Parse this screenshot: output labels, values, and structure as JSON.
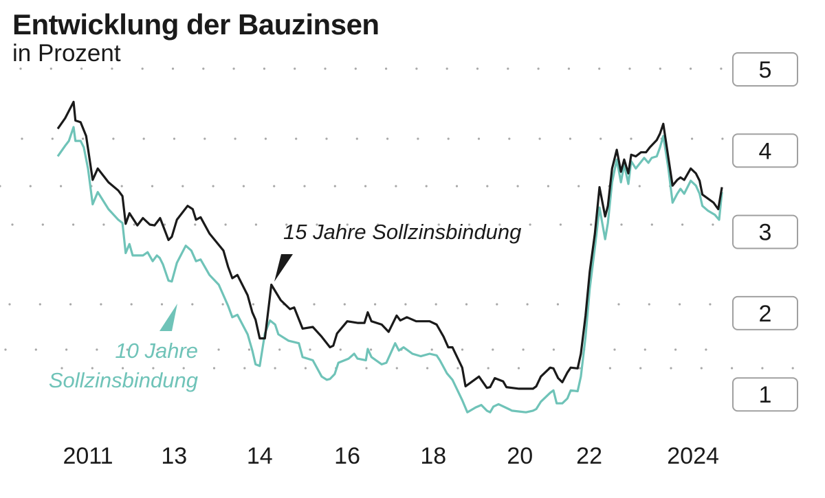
{
  "chart_data": {
    "type": "line",
    "title": "Entwicklung der Bauzinsen",
    "subtitle": "in Prozent",
    "xlabel": "",
    "ylabel": "",
    "ylim": [
      0.7,
      5
    ],
    "xlim": [
      2010.3,
      2024.7
    ],
    "grid": "dotted",
    "y_ticks": [
      5,
      4,
      3,
      2,
      1
    ],
    "x_ticks": [
      {
        "value": 2011.0,
        "label": "2011"
      },
      {
        "value": 2012.85,
        "label": "13"
      },
      {
        "value": 2014.69,
        "label": "14"
      },
      {
        "value": 2016.57,
        "label": "16"
      },
      {
        "value": 2018.42,
        "label": "18"
      },
      {
        "value": 2020.28,
        "label": "20"
      },
      {
        "value": 2021.77,
        "label": "22"
      },
      {
        "value": 2024.0,
        "label": "2024"
      }
    ],
    "series": [
      {
        "name": "15 Jahre Sollzinsbindung",
        "color": "#1a1a1a",
        "points": [
          [
            2010.35,
            4.27
          ],
          [
            2010.51,
            4.4
          ],
          [
            2010.69,
            4.6
          ],
          [
            2010.73,
            4.37
          ],
          [
            2010.84,
            4.35
          ],
          [
            2010.96,
            4.18
          ],
          [
            2011.1,
            3.64
          ],
          [
            2011.21,
            3.78
          ],
          [
            2011.44,
            3.61
          ],
          [
            2011.65,
            3.51
          ],
          [
            2011.74,
            3.44
          ],
          [
            2011.81,
            3.1
          ],
          [
            2011.89,
            3.23
          ],
          [
            2012.06,
            3.08
          ],
          [
            2012.18,
            3.17
          ],
          [
            2012.33,
            3.09
          ],
          [
            2012.43,
            3.08
          ],
          [
            2012.55,
            3.17
          ],
          [
            2012.73,
            2.9
          ],
          [
            2012.8,
            2.94
          ],
          [
            2012.91,
            3.15
          ],
          [
            2013.14,
            3.32
          ],
          [
            2013.25,
            3.28
          ],
          [
            2013.32,
            3.15
          ],
          [
            2013.42,
            3.18
          ],
          [
            2013.61,
            2.98
          ],
          [
            2013.81,
            2.84
          ],
          [
            2013.91,
            2.77
          ],
          [
            2014.01,
            2.57
          ],
          [
            2014.1,
            2.43
          ],
          [
            2014.21,
            2.47
          ],
          [
            2014.43,
            2.22
          ],
          [
            2014.53,
            2.01
          ],
          [
            2014.6,
            1.92
          ],
          [
            2014.69,
            1.69
          ],
          [
            2014.8,
            1.69
          ],
          [
            2014.94,
            2.35
          ],
          [
            2015.14,
            2.16
          ],
          [
            2015.34,
            2.05
          ],
          [
            2015.43,
            2.07
          ],
          [
            2015.61,
            1.81
          ],
          [
            2015.83,
            1.83
          ],
          [
            2016.02,
            1.71
          ],
          [
            2016.2,
            1.58
          ],
          [
            2016.27,
            1.6
          ],
          [
            2016.35,
            1.75
          ],
          [
            2016.57,
            1.9
          ],
          [
            2016.79,
            1.88
          ],
          [
            2016.94,
            1.88
          ],
          [
            2017.01,
            2.01
          ],
          [
            2017.09,
            1.9
          ],
          [
            2017.31,
            1.86
          ],
          [
            2017.46,
            1.77
          ],
          [
            2017.63,
            1.97
          ],
          [
            2017.71,
            1.91
          ],
          [
            2017.85,
            1.95
          ],
          [
            2018.05,
            1.9
          ],
          [
            2018.34,
            1.9
          ],
          [
            2018.49,
            1.86
          ],
          [
            2018.64,
            1.71
          ],
          [
            2018.74,
            1.58
          ],
          [
            2018.83,
            1.58
          ],
          [
            2018.93,
            1.46
          ],
          [
            2019.04,
            1.33
          ],
          [
            2019.11,
            1.1
          ],
          [
            2019.33,
            1.19
          ],
          [
            2019.4,
            1.22
          ],
          [
            2019.57,
            1.08
          ],
          [
            2019.64,
            1.09
          ],
          [
            2019.74,
            1.2
          ],
          [
            2019.92,
            1.16
          ],
          [
            2019.99,
            1.09
          ],
          [
            2020.26,
            1.07
          ],
          [
            2020.56,
            1.07
          ],
          [
            2020.63,
            1.1
          ],
          [
            2020.73,
            1.22
          ],
          [
            2020.93,
            1.33
          ],
          [
            2021.0,
            1.32
          ],
          [
            2021.1,
            1.2
          ],
          [
            2021.19,
            1.15
          ],
          [
            2021.3,
            1.27
          ],
          [
            2021.37,
            1.33
          ],
          [
            2021.52,
            1.32
          ],
          [
            2021.59,
            1.5
          ],
          [
            2021.69,
            1.97
          ],
          [
            2021.78,
            2.51
          ],
          [
            2021.89,
            2.98
          ],
          [
            2021.99,
            3.55
          ],
          [
            2022.11,
            3.19
          ],
          [
            2022.17,
            3.32
          ],
          [
            2022.26,
            3.78
          ],
          [
            2022.36,
            4.01
          ],
          [
            2022.45,
            3.74
          ],
          [
            2022.52,
            3.89
          ],
          [
            2022.61,
            3.72
          ],
          [
            2022.67,
            3.95
          ],
          [
            2022.77,
            3.93
          ],
          [
            2022.88,
            3.98
          ],
          [
            2022.99,
            3.98
          ],
          [
            2023.07,
            4.04
          ],
          [
            2023.22,
            4.13
          ],
          [
            2023.29,
            4.21
          ],
          [
            2023.36,
            4.33
          ],
          [
            2023.47,
            3.91
          ],
          [
            2023.56,
            3.57
          ],
          [
            2023.66,
            3.64
          ],
          [
            2023.73,
            3.67
          ],
          [
            2023.81,
            3.64
          ],
          [
            2023.95,
            3.78
          ],
          [
            2024.06,
            3.72
          ],
          [
            2024.14,
            3.63
          ],
          [
            2024.2,
            3.46
          ],
          [
            2024.44,
            3.36
          ],
          [
            2024.54,
            3.28
          ],
          [
            2024.62,
            3.55
          ]
        ]
      },
      {
        "name": "10 Jahre Sollzinsbindung",
        "color": "#6fc3b8",
        "points": [
          [
            2010.35,
            3.93
          ],
          [
            2010.51,
            4.06
          ],
          [
            2010.59,
            4.12
          ],
          [
            2010.69,
            4.29
          ],
          [
            2010.73,
            4.12
          ],
          [
            2010.84,
            4.12
          ],
          [
            2010.91,
            4.04
          ],
          [
            2011.0,
            3.78
          ],
          [
            2011.1,
            3.34
          ],
          [
            2011.21,
            3.49
          ],
          [
            2011.44,
            3.28
          ],
          [
            2011.65,
            3.15
          ],
          [
            2011.74,
            3.11
          ],
          [
            2011.81,
            2.74
          ],
          [
            2011.89,
            2.85
          ],
          [
            2011.96,
            2.71
          ],
          [
            2012.18,
            2.71
          ],
          [
            2012.28,
            2.75
          ],
          [
            2012.39,
            2.64
          ],
          [
            2012.48,
            2.71
          ],
          [
            2012.54,
            2.68
          ],
          [
            2012.61,
            2.6
          ],
          [
            2012.73,
            2.4
          ],
          [
            2012.8,
            2.39
          ],
          [
            2012.91,
            2.62
          ],
          [
            2013.1,
            2.83
          ],
          [
            2013.22,
            2.77
          ],
          [
            2013.32,
            2.64
          ],
          [
            2013.42,
            2.66
          ],
          [
            2013.61,
            2.47
          ],
          [
            2013.81,
            2.35
          ],
          [
            2013.91,
            2.22
          ],
          [
            2014.01,
            2.09
          ],
          [
            2014.1,
            1.95
          ],
          [
            2014.21,
            1.98
          ],
          [
            2014.43,
            1.74
          ],
          [
            2014.53,
            1.54
          ],
          [
            2014.6,
            1.37
          ],
          [
            2014.69,
            1.35
          ],
          [
            2014.8,
            1.75
          ],
          [
            2014.91,
            1.91
          ],
          [
            2015.02,
            1.86
          ],
          [
            2015.09,
            1.74
          ],
          [
            2015.31,
            1.66
          ],
          [
            2015.53,
            1.63
          ],
          [
            2015.61,
            1.46
          ],
          [
            2015.83,
            1.42
          ],
          [
            2016.02,
            1.22
          ],
          [
            2016.13,
            1.18
          ],
          [
            2016.2,
            1.19
          ],
          [
            2016.3,
            1.25
          ],
          [
            2016.38,
            1.39
          ],
          [
            2016.6,
            1.44
          ],
          [
            2016.72,
            1.5
          ],
          [
            2016.79,
            1.44
          ],
          [
            2016.97,
            1.42
          ],
          [
            2017.01,
            1.56
          ],
          [
            2017.09,
            1.46
          ],
          [
            2017.31,
            1.37
          ],
          [
            2017.41,
            1.39
          ],
          [
            2017.6,
            1.63
          ],
          [
            2017.68,
            1.54
          ],
          [
            2017.78,
            1.58
          ],
          [
            2017.97,
            1.5
          ],
          [
            2018.15,
            1.47
          ],
          [
            2018.34,
            1.5
          ],
          [
            2018.49,
            1.48
          ],
          [
            2018.56,
            1.42
          ],
          [
            2018.71,
            1.26
          ],
          [
            2018.83,
            1.18
          ],
          [
            2018.93,
            1.06
          ],
          [
            2019.04,
            0.93
          ],
          [
            2019.15,
            0.78
          ],
          [
            2019.33,
            0.84
          ],
          [
            2019.45,
            0.87
          ],
          [
            2019.57,
            0.8
          ],
          [
            2019.64,
            0.78
          ],
          [
            2019.71,
            0.85
          ],
          [
            2019.82,
            0.88
          ],
          [
            2020.04,
            0.82
          ],
          [
            2020.11,
            0.8
          ],
          [
            2020.41,
            0.78
          ],
          [
            2020.56,
            0.8
          ],
          [
            2020.63,
            0.82
          ],
          [
            2020.73,
            0.91
          ],
          [
            2020.93,
            1.02
          ],
          [
            2021.0,
            1.05
          ],
          [
            2021.07,
            0.89
          ],
          [
            2021.19,
            0.89
          ],
          [
            2021.3,
            0.95
          ],
          [
            2021.37,
            1.05
          ],
          [
            2021.52,
            1.04
          ],
          [
            2021.59,
            1.22
          ],
          [
            2021.69,
            1.71
          ],
          [
            2021.78,
            2.3
          ],
          [
            2021.9,
            2.85
          ],
          [
            2021.99,
            3.3
          ],
          [
            2022.11,
            2.91
          ],
          [
            2022.17,
            3.11
          ],
          [
            2022.26,
            3.61
          ],
          [
            2022.36,
            3.89
          ],
          [
            2022.45,
            3.61
          ],
          [
            2022.52,
            3.83
          ],
          [
            2022.61,
            3.59
          ],
          [
            2022.67,
            3.87
          ],
          [
            2022.77,
            3.78
          ],
          [
            2022.95,
            3.91
          ],
          [
            2023.04,
            3.85
          ],
          [
            2023.11,
            3.91
          ],
          [
            2023.22,
            3.93
          ],
          [
            2023.29,
            4.04
          ],
          [
            2023.36,
            4.18
          ],
          [
            2023.47,
            3.78
          ],
          [
            2023.56,
            3.36
          ],
          [
            2023.66,
            3.47
          ],
          [
            2023.73,
            3.53
          ],
          [
            2023.81,
            3.47
          ],
          [
            2023.95,
            3.63
          ],
          [
            2024.06,
            3.57
          ],
          [
            2024.14,
            3.47
          ],
          [
            2024.2,
            3.32
          ],
          [
            2024.32,
            3.26
          ],
          [
            2024.47,
            3.21
          ],
          [
            2024.56,
            3.15
          ],
          [
            2024.62,
            3.49
          ]
        ]
      }
    ],
    "annotations": {
      "black_label": "15 Jahre Sollzinsbindung",
      "teal_label_line1": "10 Jahre",
      "teal_label_line2": "Sollzinsbindung"
    }
  }
}
